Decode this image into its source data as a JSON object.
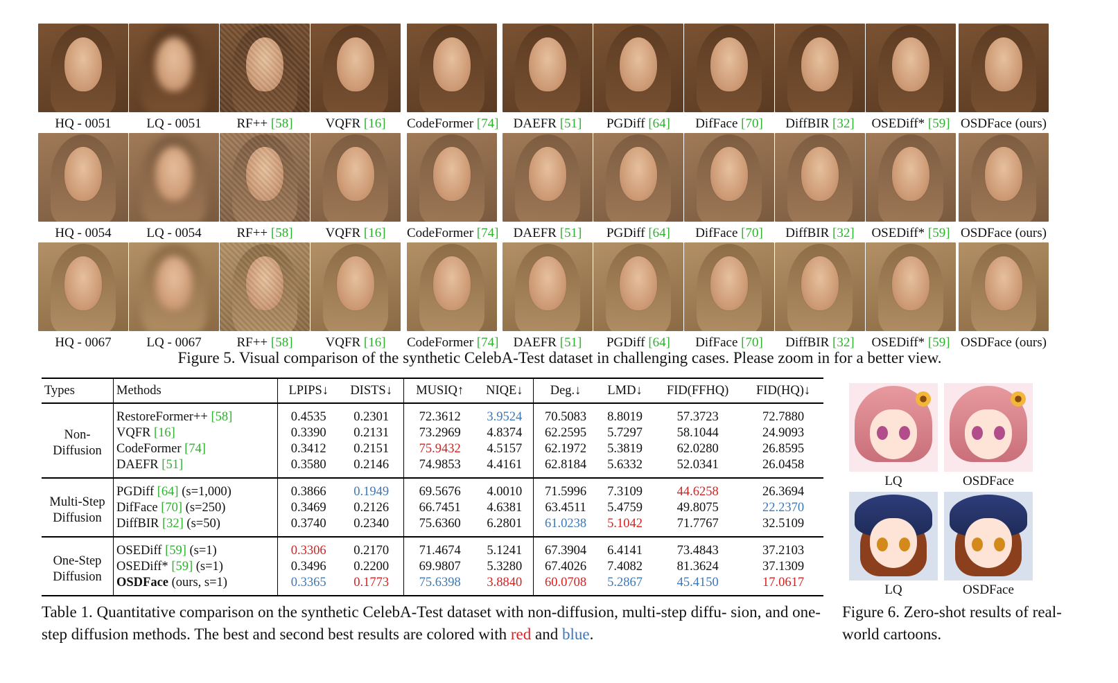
{
  "figure5": {
    "rows": [
      {
        "captions": [
          {
            "text": "HQ - 0051",
            "ref": ""
          },
          {
            "text": "LQ - 0051",
            "ref": ""
          },
          {
            "text": "RF++ ",
            "ref": "[58]"
          },
          {
            "text": "VQFR ",
            "ref": "[16]"
          },
          {
            "text": "CodeFormer ",
            "ref": "[74]"
          },
          {
            "text": "DAEFR ",
            "ref": "[51]"
          },
          {
            "text": "PGDiff ",
            "ref": "[64]"
          },
          {
            "text": "DifFace ",
            "ref": "[70]"
          },
          {
            "text": "DiffBIR ",
            "ref": "[32]"
          },
          {
            "text": "OSEDiff* ",
            "ref": "[59]"
          },
          {
            "text": "OSDFace (ours)",
            "ref": ""
          }
        ]
      },
      {
        "captions": [
          {
            "text": "HQ - 0054",
            "ref": ""
          },
          {
            "text": "LQ - 0054",
            "ref": ""
          },
          {
            "text": "RF++ ",
            "ref": "[58]"
          },
          {
            "text": "VQFR ",
            "ref": "[16]"
          },
          {
            "text": "CodeFormer ",
            "ref": "[74]"
          },
          {
            "text": "DAEFR ",
            "ref": "[51]"
          },
          {
            "text": "PGDiff ",
            "ref": "[64]"
          },
          {
            "text": "DifFace ",
            "ref": "[70]"
          },
          {
            "text": "DiffBIR ",
            "ref": "[32]"
          },
          {
            "text": "OSEDiff* ",
            "ref": "[59]"
          },
          {
            "text": "OSDFace (ours)",
            "ref": ""
          }
        ]
      },
      {
        "captions": [
          {
            "text": "HQ - 0067",
            "ref": ""
          },
          {
            "text": "LQ - 0067",
            "ref": ""
          },
          {
            "text": "RF++ ",
            "ref": "[58]"
          },
          {
            "text": "VQFR ",
            "ref": "[16]"
          },
          {
            "text": "CodeFormer ",
            "ref": "[74]"
          },
          {
            "text": "DAEFR ",
            "ref": "[51]"
          },
          {
            "text": "PGDiff ",
            "ref": "[64]"
          },
          {
            "text": "DifFace ",
            "ref": "[70]"
          },
          {
            "text": "DiffBIR ",
            "ref": "[32]"
          },
          {
            "text": "OSEDiff* ",
            "ref": "[59]"
          },
          {
            "text": "OSDFace (ours)",
            "ref": ""
          }
        ]
      }
    ],
    "caption": "Figure 5. Visual comparison of the synthetic CelebA-Test dataset in challenging cases. Please zoom in for a better view."
  },
  "table1": {
    "headers": {
      "types": "Types",
      "methods": "Methods",
      "lpips": "LPIPS↓",
      "dists": "DISTS↓",
      "musiq": "MUSIQ↑",
      "niqe": "NIQE↓",
      "deg": "Deg.↓",
      "lmd": "LMD↓",
      "fid_ffhq": "FID(FFHQ)",
      "fid_hq": "FID(HQ)↓"
    },
    "groups": [
      {
        "type_line1": "Non-",
        "type_line2": "Diffusion",
        "rows": [
          {
            "method": "RestoreFormer++ ",
            "ref": "[58]",
            "suffix": "",
            "values": [
              "0.4535",
              "0.2301",
              "72.3612",
              "3.9524",
              "70.5083",
              "8.8019",
              "57.3723",
              "72.7880"
            ],
            "colors": [
              "",
              "",
              "",
              "blue",
              "",
              "",
              "",
              ""
            ]
          },
          {
            "method": "VQFR ",
            "ref": "[16]",
            "suffix": "",
            "values": [
              "0.3390",
              "0.2131",
              "73.2969",
              "4.8374",
              "62.2595",
              "5.7297",
              "58.1044",
              "24.9093"
            ],
            "colors": [
              "",
              "",
              "",
              "",
              "",
              "",
              "",
              ""
            ]
          },
          {
            "method": "CodeFormer ",
            "ref": "[74]",
            "suffix": "",
            "values": [
              "0.3412",
              "0.2151",
              "75.9432",
              "4.5157",
              "62.1972",
              "5.3819",
              "62.0280",
              "26.8595"
            ],
            "colors": [
              "",
              "",
              "red",
              "",
              "",
              "",
              "",
              ""
            ]
          },
          {
            "method": "DAEFR ",
            "ref": "[51]",
            "suffix": "",
            "values": [
              "0.3580",
              "0.2146",
              "74.9853",
              "4.4161",
              "62.8184",
              "5.6332",
              "52.0341",
              "26.0458"
            ],
            "colors": [
              "",
              "",
              "",
              "",
              "",
              "",
              "",
              ""
            ]
          }
        ]
      },
      {
        "type_line1": "Multi-Step",
        "type_line2": "Diffusion",
        "rows": [
          {
            "method": "PGDiff ",
            "ref": "[64]",
            "suffix": " (s=1,000)",
            "values": [
              "0.3866",
              "0.1949",
              "69.5676",
              "4.0010",
              "71.5996",
              "7.3109",
              "44.6258",
              "26.3694"
            ],
            "colors": [
              "",
              "blue",
              "",
              "",
              "",
              "",
              "red",
              ""
            ]
          },
          {
            "method": "DifFace ",
            "ref": "[70]",
            "suffix": " (s=250)",
            "values": [
              "0.3469",
              "0.2126",
              "66.7451",
              "4.6381",
              "63.4511",
              "5.4759",
              "49.8075",
              "22.2370"
            ],
            "colors": [
              "",
              "",
              "",
              "",
              "",
              "",
              "",
              "blue"
            ]
          },
          {
            "method": "DiffBIR ",
            "ref": "[32]",
            "suffix": " (s=50)",
            "values": [
              "0.3740",
              "0.2340",
              "75.6360",
              "6.2801",
              "61.0238",
              "5.1042",
              "71.7767",
              "32.5109"
            ],
            "colors": [
              "",
              "",
              "",
              "",
              "blue",
              "red",
              "",
              ""
            ]
          }
        ]
      },
      {
        "type_line1": "One-Step",
        "type_line2": "Diffusion",
        "rows": [
          {
            "method": "OSEDiff ",
            "ref": "[59]",
            "suffix": " (s=1)",
            "values": [
              "0.3306",
              "0.2170",
              "71.4674",
              "5.1241",
              "67.3904",
              "6.4141",
              "73.4843",
              "37.2103"
            ],
            "colors": [
              "red",
              "",
              "",
              "",
              "",
              "",
              "",
              ""
            ]
          },
          {
            "method": "OSEDiff* ",
            "ref": "[59]",
            "suffix": " (s=1)",
            "values": [
              "0.3496",
              "0.2200",
              "69.9807",
              "5.3280",
              "67.4026",
              "7.4082",
              "81.3624",
              "37.1309"
            ],
            "colors": [
              "",
              "",
              "",
              "",
              "",
              "",
              "",
              ""
            ]
          },
          {
            "method": "OSDFace",
            "ref": "",
            "suffix": " (ours, s=1)",
            "bold": true,
            "values": [
              "0.3365",
              "0.1773",
              "75.6398",
              "3.8840",
              "60.0708",
              "5.2867",
              "45.4150",
              "17.0617"
            ],
            "colors": [
              "blue",
              "red",
              "blue",
              "red",
              "red",
              "blue",
              "blue",
              "red"
            ]
          }
        ]
      }
    ],
    "caption_part1": "Table 1. Quantitative comparison on the synthetic CelebA-Test dataset with non-diffusion, multi-step diffu- sion, and one-step diffusion methods. The best and second best results are colored with ",
    "caption_red": "red",
    "caption_and": " and ",
    "caption_blue": "blue",
    "caption_end": "."
  },
  "figure6": {
    "labels": [
      "LQ",
      "OSDFace",
      "LQ",
      "OSDFace"
    ],
    "caption": "Figure 6. Zero-shot results of real-world cartoons."
  },
  "colors": {
    "best": "#d42222",
    "second": "#3a78b8",
    "citation": "#2cb22c"
  }
}
